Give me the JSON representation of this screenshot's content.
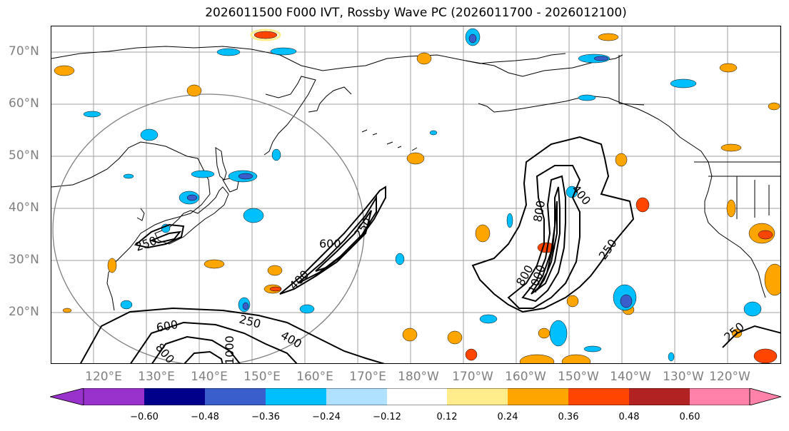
{
  "title": "2026011500 F000 IVT, Rossby Wave PC (2026011700 - 2026012100)",
  "lat_labels": [
    "70°N",
    "60°N",
    "50°N",
    "40°N",
    "30°N",
    "20°N"
  ],
  "lon_labels": [
    "120°E",
    "130°E",
    "140°E",
    "150°E",
    "160°E",
    "170°E",
    "180°W",
    "170°W",
    "160°W",
    "150°W",
    "140°W",
    "130°W",
    "120°W"
  ],
  "colorbar": {
    "ticks": [
      "−0.60",
      "−0.48",
      "−0.36",
      "−0.24",
      "−0.12",
      "0.12",
      "0.24",
      "0.36",
      "0.48",
      "0.60"
    ],
    "colors": {
      "under": "#9932CC",
      "c1": "#00008B",
      "c2": "#3A5FCD",
      "c3": "#00BFFF",
      "c4": "#B0E2FF",
      "c5": "#FFFFFF",
      "c6": "#FFEC8B",
      "c7": "#FFA500",
      "c8": "#FF4500",
      "c9": "#B22222",
      "over": "#FF82AB"
    }
  },
  "contour_labels": {
    "l250_jp": "250",
    "l600_mid": "600",
    "l250_mid": "250",
    "l400_mid": "400",
    "l250_s": "250",
    "l600_s": "600",
    "l800_s": "800",
    "l400_s": "400",
    "l1000_s": "1000",
    "l400_e": "400",
    "l800_e": "800",
    "l250_e": "250",
    "l800_e2": "800",
    "l1000_e": "1000",
    "l250_se": "250"
  }
}
